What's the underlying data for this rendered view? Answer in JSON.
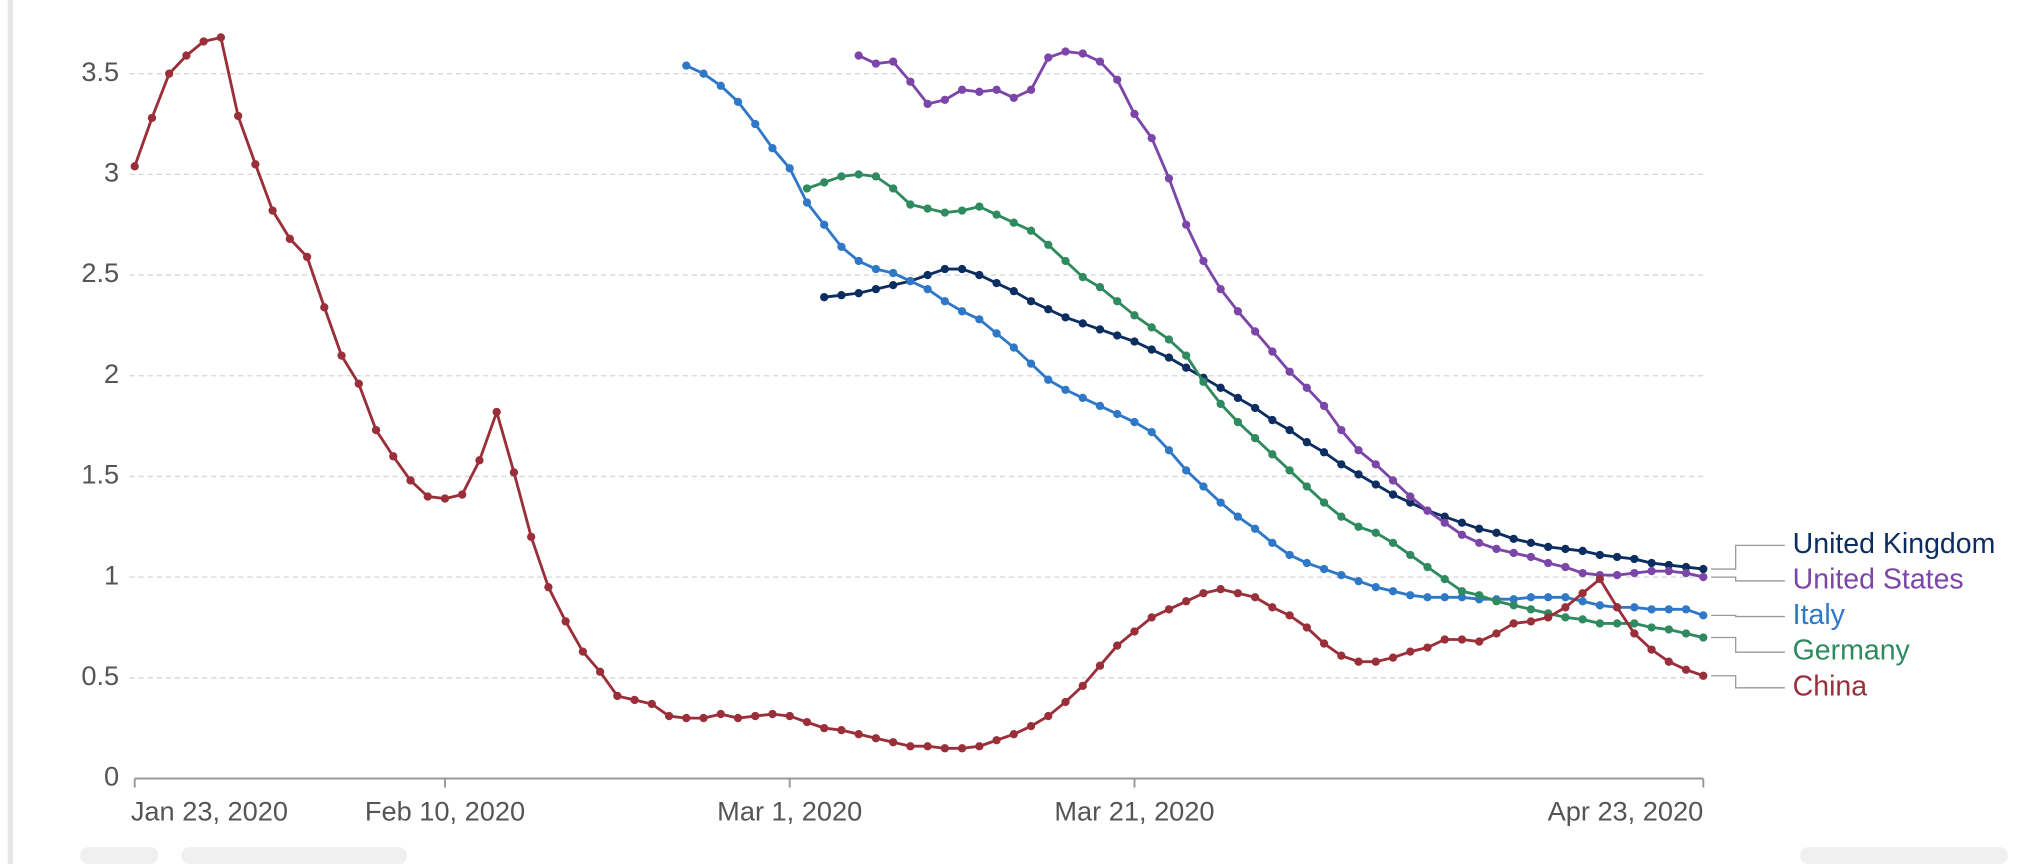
{
  "chart_data": {
    "type": "line",
    "x": [
      "2020-01-23",
      "2020-01-24",
      "2020-01-25",
      "2020-01-26",
      "2020-01-27",
      "2020-01-28",
      "2020-01-29",
      "2020-01-30",
      "2020-01-31",
      "2020-02-01",
      "2020-02-02",
      "2020-02-03",
      "2020-02-04",
      "2020-02-05",
      "2020-02-06",
      "2020-02-07",
      "2020-02-08",
      "2020-02-09",
      "2020-02-10",
      "2020-02-11",
      "2020-02-12",
      "2020-02-13",
      "2020-02-14",
      "2020-02-15",
      "2020-02-16",
      "2020-02-17",
      "2020-02-18",
      "2020-02-19",
      "2020-02-20",
      "2020-02-21",
      "2020-02-22",
      "2020-02-23",
      "2020-02-24",
      "2020-02-25",
      "2020-02-26",
      "2020-02-27",
      "2020-02-28",
      "2020-02-29",
      "2020-03-01",
      "2020-03-02",
      "2020-03-03",
      "2020-03-04",
      "2020-03-05",
      "2020-03-06",
      "2020-03-07",
      "2020-03-08",
      "2020-03-09",
      "2020-03-10",
      "2020-03-11",
      "2020-03-12",
      "2020-03-13",
      "2020-03-14",
      "2020-03-15",
      "2020-03-16",
      "2020-03-17",
      "2020-03-18",
      "2020-03-19",
      "2020-03-20",
      "2020-03-21",
      "2020-03-22",
      "2020-03-23",
      "2020-03-24",
      "2020-03-25",
      "2020-03-26",
      "2020-03-27",
      "2020-03-28",
      "2020-03-29",
      "2020-03-30",
      "2020-03-31",
      "2020-04-01",
      "2020-04-02",
      "2020-04-03",
      "2020-04-04",
      "2020-04-05",
      "2020-04-06",
      "2020-04-07",
      "2020-04-08",
      "2020-04-09",
      "2020-04-10",
      "2020-04-11",
      "2020-04-12",
      "2020-04-13",
      "2020-04-14",
      "2020-04-15",
      "2020-04-16",
      "2020-04-17",
      "2020-04-18",
      "2020-04-19",
      "2020-04-20",
      "2020-04-21",
      "2020-04-22",
      "2020-04-23"
    ],
    "series": [
      {
        "name": "United Kingdom",
        "color": "#0c2d5f",
        "values": [
          null,
          null,
          null,
          null,
          null,
          null,
          null,
          null,
          null,
          null,
          null,
          null,
          null,
          null,
          null,
          null,
          null,
          null,
          null,
          null,
          null,
          null,
          null,
          null,
          null,
          null,
          null,
          null,
          null,
          null,
          null,
          null,
          null,
          null,
          null,
          null,
          null,
          null,
          null,
          null,
          2.39,
          2.4,
          2.41,
          2.43,
          2.45,
          2.47,
          2.5,
          2.53,
          2.53,
          2.5,
          2.46,
          2.42,
          2.37,
          2.33,
          2.29,
          2.26,
          2.23,
          2.2,
          2.17,
          2.13,
          2.09,
          2.04,
          1.99,
          1.94,
          1.89,
          1.84,
          1.78,
          1.73,
          1.67,
          1.62,
          1.56,
          1.51,
          1.46,
          1.41,
          1.37,
          1.33,
          1.3,
          1.27,
          1.24,
          1.22,
          1.19,
          1.17,
          1.15,
          1.14,
          1.13,
          1.11,
          1.1,
          1.09,
          1.07,
          1.06,
          1.05,
          1.04
        ]
      },
      {
        "name": "United States",
        "color": "#7b46a8",
        "values": [
          null,
          null,
          null,
          null,
          null,
          null,
          null,
          null,
          null,
          null,
          null,
          null,
          null,
          null,
          null,
          null,
          null,
          null,
          null,
          null,
          null,
          null,
          null,
          null,
          null,
          null,
          null,
          null,
          null,
          null,
          null,
          null,
          null,
          null,
          null,
          null,
          null,
          null,
          null,
          null,
          null,
          null,
          3.59,
          3.55,
          3.56,
          3.46,
          3.35,
          3.37,
          3.42,
          3.41,
          3.42,
          3.38,
          3.42,
          3.58,
          3.61,
          3.6,
          3.56,
          3.47,
          3.3,
          3.18,
          2.98,
          2.75,
          2.57,
          2.43,
          2.32,
          2.22,
          2.12,
          2.02,
          1.94,
          1.85,
          1.73,
          1.63,
          1.56,
          1.48,
          1.4,
          1.33,
          1.27,
          1.21,
          1.17,
          1.14,
          1.12,
          1.1,
          1.07,
          1.05,
          1.02,
          1.01,
          1.01,
          1.02,
          1.03,
          1.03,
          1.02,
          1.0
        ]
      },
      {
        "name": "Italy",
        "color": "#2f78c8",
        "values": [
          null,
          null,
          null,
          null,
          null,
          null,
          null,
          null,
          null,
          null,
          null,
          null,
          null,
          null,
          null,
          null,
          null,
          null,
          null,
          null,
          null,
          null,
          null,
          null,
          null,
          null,
          null,
          null,
          null,
          null,
          null,
          null,
          3.54,
          3.5,
          3.44,
          3.36,
          3.25,
          3.13,
          3.03,
          2.86,
          2.75,
          2.64,
          2.57,
          2.53,
          2.51,
          2.47,
          2.43,
          2.37,
          2.32,
          2.28,
          2.21,
          2.14,
          2.06,
          1.98,
          1.93,
          1.89,
          1.85,
          1.81,
          1.77,
          1.72,
          1.63,
          1.53,
          1.45,
          1.37,
          1.3,
          1.24,
          1.17,
          1.11,
          1.07,
          1.04,
          1.01,
          0.98,
          0.95,
          0.93,
          0.91,
          0.9,
          0.9,
          0.9,
          0.89,
          0.89,
          0.89,
          0.9,
          0.9,
          0.9,
          0.88,
          0.86,
          0.85,
          0.85,
          0.84,
          0.84,
          0.84,
          0.81
        ]
      },
      {
        "name": "Germany",
        "color": "#2f8a5f",
        "values": [
          null,
          null,
          null,
          null,
          null,
          null,
          null,
          null,
          null,
          null,
          null,
          null,
          null,
          null,
          null,
          null,
          null,
          null,
          null,
          null,
          null,
          null,
          null,
          null,
          null,
          null,
          null,
          null,
          null,
          null,
          null,
          null,
          null,
          null,
          null,
          null,
          null,
          null,
          null,
          2.93,
          2.96,
          2.99,
          3.0,
          2.99,
          2.93,
          2.85,
          2.83,
          2.81,
          2.82,
          2.84,
          2.8,
          2.76,
          2.72,
          2.65,
          2.57,
          2.49,
          2.44,
          2.37,
          2.3,
          2.24,
          2.18,
          2.1,
          1.97,
          1.86,
          1.77,
          1.69,
          1.61,
          1.53,
          1.45,
          1.37,
          1.3,
          1.25,
          1.22,
          1.17,
          1.11,
          1.05,
          0.99,
          0.93,
          0.91,
          0.88,
          0.86,
          0.84,
          0.82,
          0.8,
          0.79,
          0.77,
          0.77,
          0.77,
          0.75,
          0.74,
          0.72,
          0.7
        ]
      },
      {
        "name": "China",
        "color": "#9a2f3a",
        "values": [
          3.04,
          3.28,
          3.5,
          3.59,
          3.66,
          3.68,
          3.29,
          3.05,
          2.82,
          2.68,
          2.59,
          2.34,
          2.1,
          1.96,
          1.73,
          1.6,
          1.48,
          1.4,
          1.39,
          1.41,
          1.58,
          1.82,
          1.52,
          1.2,
          0.95,
          0.78,
          0.63,
          0.53,
          0.41,
          0.39,
          0.37,
          0.31,
          0.3,
          0.3,
          0.32,
          0.3,
          0.31,
          0.32,
          0.31,
          0.28,
          0.25,
          0.24,
          0.22,
          0.2,
          0.18,
          0.16,
          0.16,
          0.15,
          0.15,
          0.16,
          0.19,
          0.22,
          0.26,
          0.31,
          0.38,
          0.46,
          0.56,
          0.66,
          0.73,
          0.8,
          0.84,
          0.88,
          0.92,
          0.94,
          0.92,
          0.9,
          0.85,
          0.81,
          0.75,
          0.67,
          0.61,
          0.58,
          0.58,
          0.6,
          0.63,
          0.65,
          0.69,
          0.69,
          0.68,
          0.72,
          0.77,
          0.78,
          0.8,
          0.85,
          0.92,
          0.99,
          0.85,
          0.72,
          0.64,
          0.58,
          0.54,
          0.51
        ]
      }
    ],
    "xlim": [
      "2020-01-23",
      "2020-04-23"
    ],
    "xticks": [
      {
        "value": "2020-01-23",
        "label": "Jan 23, 2020"
      },
      {
        "value": "2020-02-10",
        "label": "Feb 10, 2020"
      },
      {
        "value": "2020-03-01",
        "label": "Mar 1, 2020"
      },
      {
        "value": "2020-03-21",
        "label": "Mar 21, 2020"
      },
      {
        "value": "2020-04-23",
        "label": "Apr 23, 2020"
      }
    ],
    "ylim": [
      0,
      3.75
    ],
    "yticks": [
      0,
      0.5,
      1,
      1.5,
      2,
      2.5,
      3,
      3.5
    ],
    "grid": true
  }
}
